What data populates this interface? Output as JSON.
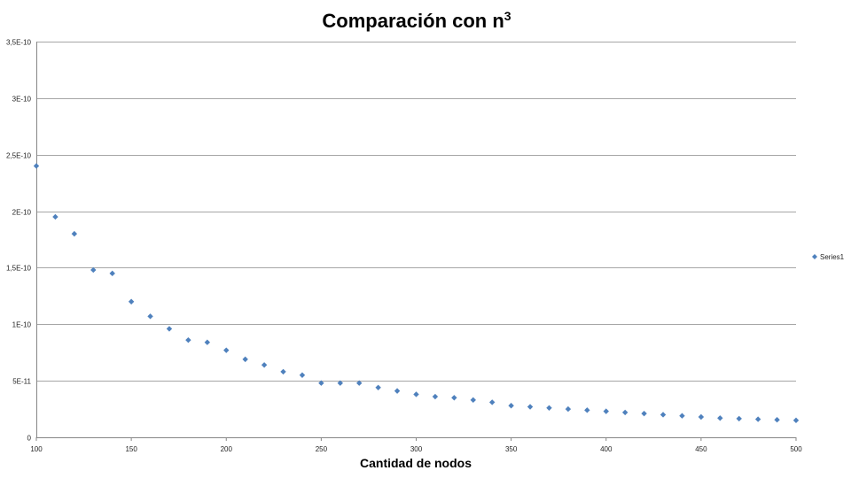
{
  "chart_data": {
    "type": "scatter",
    "title": "Comparación con n",
    "title_superscript": "3",
    "xlabel": "Cantidad de nodos",
    "ylabel": "",
    "xlim": [
      100,
      500
    ],
    "ylim": [
      0,
      3.5e-10
    ],
    "x_ticks": [
      100,
      150,
      200,
      250,
      300,
      350,
      400,
      450,
      500
    ],
    "x_tick_labels": [
      "100",
      "150",
      "200",
      "250",
      "300",
      "350",
      "400",
      "450",
      "500"
    ],
    "y_ticks": [
      0,
      5e-11,
      1e-10,
      1.5e-10,
      2e-10,
      2.5e-10,
      3e-10,
      3.5e-10
    ],
    "y_tick_labels": [
      "0",
      "5E-11",
      "1E-10",
      "1,5E-10",
      "2E-10",
      "2,5E-10",
      "3E-10",
      "3,5E-10"
    ],
    "grid": "horizontal",
    "legend_position": "right",
    "series": [
      {
        "name": "Series1",
        "color": "#4f81bd",
        "marker": "diamond",
        "x": [
          100,
          110,
          120,
          130,
          140,
          150,
          160,
          170,
          180,
          190,
          200,
          210,
          220,
          230,
          240,
          250,
          260,
          270,
          280,
          290,
          300,
          310,
          320,
          330,
          340,
          350,
          360,
          370,
          380,
          390,
          400,
          410,
          420,
          430,
          440,
          450,
          460,
          470,
          480,
          490,
          500
        ],
        "y": [
          2.4e-10,
          1.95e-10,
          1.8e-10,
          1.48e-10,
          1.45e-10,
          1.2e-10,
          1.07e-10,
          9.6e-11,
          8.6e-11,
          8.4e-11,
          7.7e-11,
          6.9e-11,
          6.4e-11,
          5.8e-11,
          5.5e-11,
          4.8e-11,
          4.8e-11,
          4.8e-11,
          4.4e-11,
          4.1e-11,
          3.8e-11,
          3.6e-11,
          3.5e-11,
          3.3e-11,
          3.1e-11,
          2.8e-11,
          2.7e-11,
          2.6e-11,
          2.5e-11,
          2.4e-11,
          2.3e-11,
          2.2e-11,
          2.1e-11,
          2e-11,
          1.9e-11,
          1.8e-11,
          1.7e-11,
          1.65e-11,
          1.6e-11,
          1.55e-11,
          1.5e-11
        ]
      }
    ]
  }
}
